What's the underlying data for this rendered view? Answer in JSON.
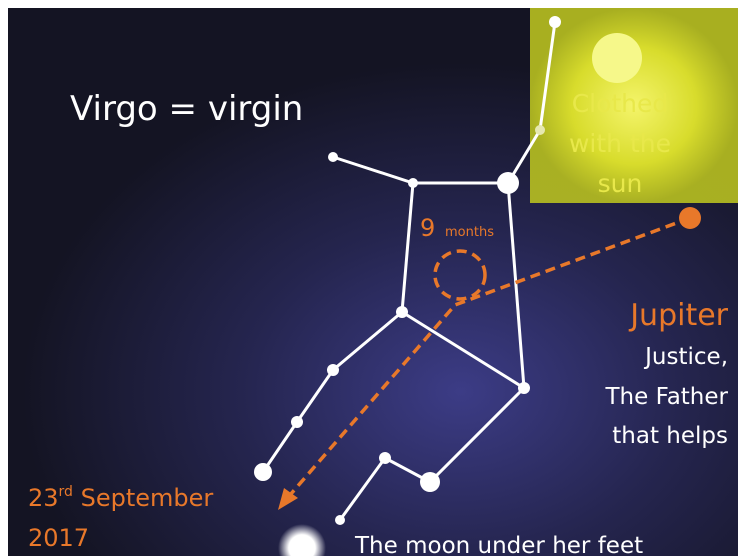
{
  "title": "Virgo = virgin",
  "sun_label": [
    "Clothed",
    "with the",
    "sun"
  ],
  "months_label": {
    "number": "9",
    "unit": "months"
  },
  "jupiter_label": "Jupiter",
  "jupiter_meaning": [
    "Justice,",
    "The Father",
    "that helps"
  ],
  "date_label": {
    "day": "23",
    "suffix": "rd",
    "month": " September",
    "year": "2017"
  },
  "moon_label": "The moon under her feet"
}
